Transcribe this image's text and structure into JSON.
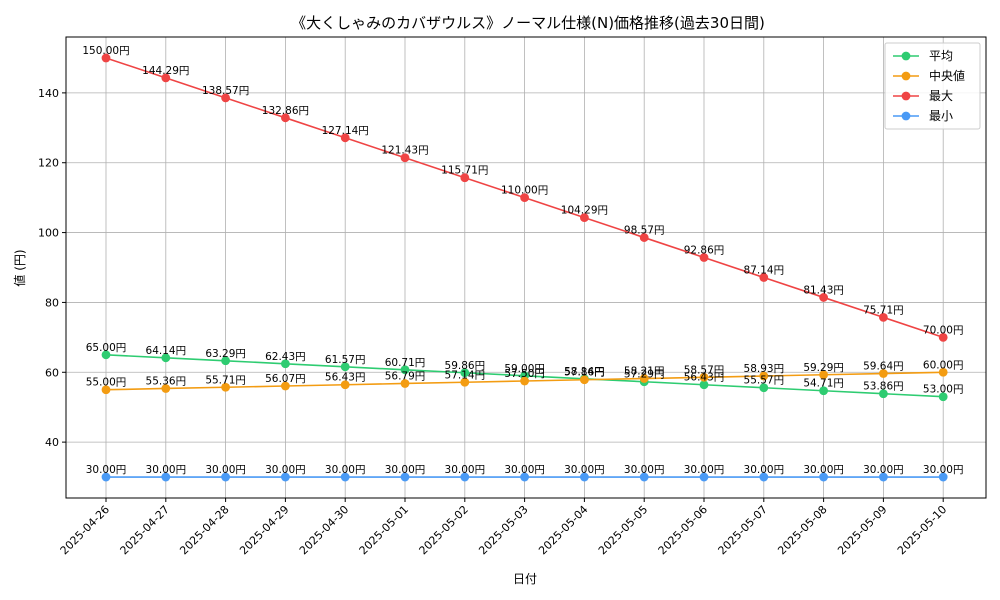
{
  "chart_data": {
    "type": "line",
    "title": "《大くしゃみのカバザウルス》ノーマル仕様(N)価格推移(過去30日間)",
    "xlabel": "日付",
    "ylabel": "値 (円)",
    "categories": [
      "2025-04-26",
      "2025-04-27",
      "2025-04-28",
      "2025-04-29",
      "2025-04-30",
      "2025-05-01",
      "2025-05-02",
      "2025-05-03",
      "2025-05-04",
      "2025-05-05",
      "2025-05-06",
      "2025-05-07",
      "2025-05-08",
      "2025-05-09",
      "2025-05-10"
    ],
    "ylim": [
      24,
      156
    ],
    "yticks": [
      40,
      60,
      80,
      100,
      120,
      140
    ],
    "grid": true,
    "legend_position": "top-right",
    "series": [
      {
        "name": "平均",
        "color": "#2ecc71",
        "values": [
          65.0,
          64.14,
          63.29,
          62.43,
          61.57,
          60.71,
          59.86,
          59.0,
          58.14,
          57.29,
          56.43,
          55.57,
          54.71,
          53.86,
          53.0
        ]
      },
      {
        "name": "中央値",
        "color": "#f39c12",
        "values": [
          55.0,
          55.36,
          55.71,
          56.07,
          56.43,
          56.79,
          57.14,
          57.5,
          57.86,
          58.21,
          58.57,
          58.93,
          59.29,
          59.64,
          60.0
        ]
      },
      {
        "name": "最大",
        "color": "#ef4444",
        "values": [
          150.0,
          144.29,
          138.57,
          132.86,
          127.14,
          121.43,
          115.71,
          110.0,
          104.29,
          98.57,
          92.86,
          87.14,
          81.43,
          75.71,
          70.0
        ]
      },
      {
        "name": "最小",
        "color": "#4a9af5",
        "values": [
          30.0,
          30.0,
          30.0,
          30.0,
          30.0,
          30.0,
          30.0,
          30.0,
          30.0,
          30.0,
          30.0,
          30.0,
          30.0,
          30.0,
          30.0
        ]
      }
    ],
    "value_suffix": "円"
  }
}
